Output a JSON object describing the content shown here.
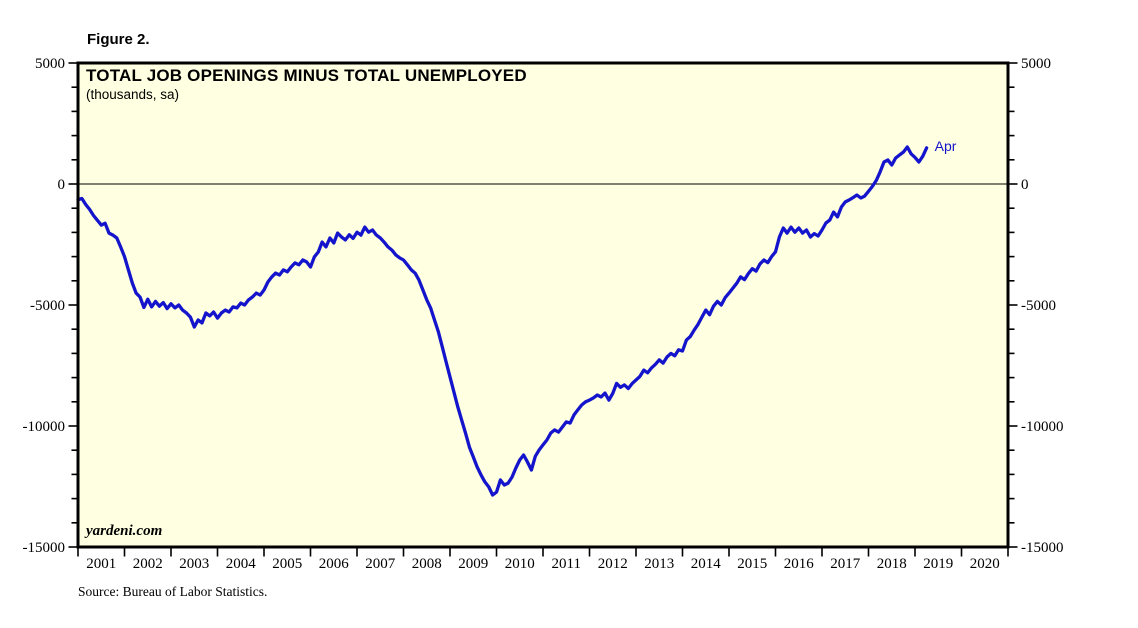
{
  "figure_label": "Figure 2.",
  "watermark": "yardeni.com",
  "source_note": "Source: Bureau of Labor Statistics.",
  "annotations": {
    "last_point_label": "Apr"
  },
  "colors": {
    "line": "#1414cc",
    "plot_background": "#ffffe1",
    "frame": "#000000",
    "annotation_blue": "#1414cc"
  },
  "chart_data": {
    "type": "line",
    "title": "TOTAL JOB OPENINGS MINUS TOTAL UNEMPLOYED",
    "subtitle": "(thousands, sa)",
    "xlabel": "",
    "ylabel": "",
    "ylim": [
      -15000,
      5000
    ],
    "y_major_ticks": [
      5000,
      0,
      -5000,
      -10000,
      -15000
    ],
    "y_minor_step": 1000,
    "x_tick_years": [
      "2001",
      "2002",
      "2003",
      "2004",
      "2005",
      "2006",
      "2007",
      "2008",
      "2009",
      "2010",
      "2011",
      "2012",
      "2013",
      "2014",
      "2015",
      "2016",
      "2017",
      "2018",
      "2019",
      "2020"
    ],
    "x_range_months": 240,
    "grid": false,
    "legend_position": "none",
    "zero_line": true,
    "series": [
      {
        "name": "Total job openings minus total unemployed",
        "frequency": "monthly",
        "start": "2001-01",
        "end": "2019-04",
        "values": [
          -650,
          -600,
          -850,
          -1050,
          -1300,
          -1500,
          -1700,
          -1620,
          -2030,
          -2110,
          -2230,
          -2600,
          -3000,
          -3550,
          -4090,
          -4510,
          -4670,
          -5100,
          -4760,
          -5080,
          -4850,
          -5050,
          -4900,
          -5150,
          -4950,
          -5120,
          -5000,
          -5210,
          -5330,
          -5500,
          -5910,
          -5620,
          -5740,
          -5330,
          -5450,
          -5290,
          -5540,
          -5330,
          -5210,
          -5290,
          -5080,
          -5120,
          -4920,
          -5000,
          -4790,
          -4670,
          -4510,
          -4590,
          -4380,
          -4050,
          -3840,
          -3680,
          -3760,
          -3550,
          -3630,
          -3430,
          -3260,
          -3340,
          -3140,
          -3220,
          -3430,
          -3010,
          -2810,
          -2400,
          -2600,
          -2230,
          -2440,
          -2030,
          -2190,
          -2310,
          -2100,
          -2250,
          -1990,
          -2110,
          -1780,
          -1990,
          -1900,
          -2110,
          -2230,
          -2400,
          -2600,
          -2730,
          -2930,
          -3050,
          -3140,
          -3340,
          -3550,
          -3680,
          -3970,
          -4380,
          -4790,
          -5120,
          -5620,
          -6110,
          -6730,
          -7350,
          -7970,
          -8590,
          -9210,
          -9750,
          -10290,
          -10870,
          -11280,
          -11690,
          -12020,
          -12310,
          -12520,
          -12850,
          -12730,
          -12230,
          -12440,
          -12360,
          -12110,
          -11730,
          -11400,
          -11200,
          -11490,
          -11820,
          -11250,
          -10990,
          -10780,
          -10580,
          -10290,
          -10160,
          -10250,
          -10040,
          -9830,
          -9880,
          -9540,
          -9330,
          -9130,
          -9000,
          -8930,
          -8840,
          -8720,
          -8800,
          -8640,
          -8930,
          -8650,
          -8240,
          -8400,
          -8300,
          -8450,
          -8250,
          -8100,
          -7950,
          -7690,
          -7800,
          -7600,
          -7450,
          -7270,
          -7400,
          -7150,
          -7000,
          -7100,
          -6850,
          -6900,
          -6450,
          -6300,
          -6040,
          -5800,
          -5500,
          -5210,
          -5400,
          -5050,
          -4850,
          -5000,
          -4700,
          -4510,
          -4300,
          -4100,
          -3840,
          -3950,
          -3700,
          -3500,
          -3600,
          -3300,
          -3140,
          -3250,
          -3000,
          -2800,
          -2190,
          -1820,
          -2030,
          -1780,
          -1990,
          -1820,
          -2030,
          -1900,
          -2190,
          -2050,
          -2150,
          -1900,
          -1610,
          -1490,
          -1160,
          -1360,
          -950,
          -740,
          -660,
          -560,
          -455,
          -580,
          -500,
          -300,
          -100,
          150,
          500,
          910,
          990,
          785,
          1070,
          1200,
          1320,
          1530,
          1250,
          1100,
          910,
          1150,
          1490
        ]
      }
    ]
  }
}
